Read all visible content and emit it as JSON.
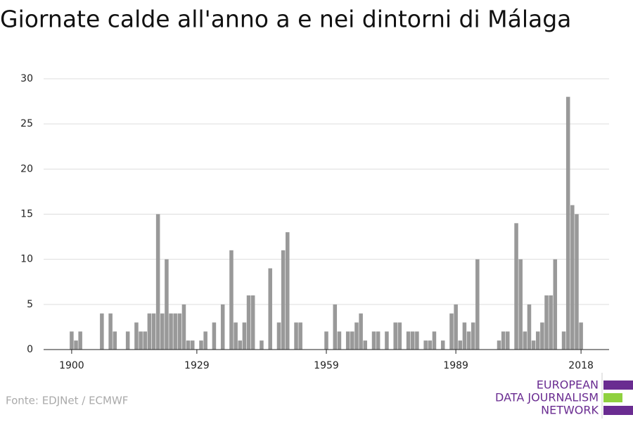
{
  "chart_data": {
    "type": "bar",
    "title": "Giornate calde all'anno a e nei dintorni di Málaga",
    "source": "Fonte: EDJNet / ECMWF",
    "logo": [
      "EUROPEAN",
      "DATA JOURNALISM",
      "NETWORK"
    ],
    "color": "#999999",
    "x": [
      1900,
      1901,
      1902,
      1903,
      1904,
      1905,
      1906,
      1907,
      1908,
      1909,
      1910,
      1911,
      1912,
      1913,
      1914,
      1915,
      1916,
      1917,
      1918,
      1919,
      1920,
      1921,
      1922,
      1923,
      1924,
      1925,
      1926,
      1927,
      1928,
      1929,
      1930,
      1931,
      1932,
      1933,
      1934,
      1935,
      1936,
      1937,
      1938,
      1939,
      1940,
      1941,
      1942,
      1943,
      1944,
      1945,
      1946,
      1947,
      1948,
      1949,
      1950,
      1951,
      1952,
      1953,
      1954,
      1955,
      1956,
      1957,
      1958,
      1959,
      1960,
      1961,
      1962,
      1963,
      1964,
      1965,
      1966,
      1967,
      1968,
      1969,
      1970,
      1971,
      1972,
      1973,
      1974,
      1975,
      1976,
      1977,
      1978,
      1979,
      1980,
      1981,
      1982,
      1983,
      1984,
      1985,
      1986,
      1987,
      1988,
      1989,
      1990,
      1991,
      1992,
      1993,
      1994,
      1995,
      1996,
      1997,
      1998,
      1999,
      2000,
      2001,
      2002,
      2003,
      2004,
      2005,
      2006,
      2007,
      2008,
      2009,
      2010,
      2011,
      2012,
      2013,
      2014,
      2015,
      2016,
      2017,
      2018
    ],
    "values": [
      2,
      1,
      2,
      0,
      0,
      0,
      0,
      4,
      0,
      4,
      2,
      0,
      0,
      2,
      0,
      3,
      2,
      2,
      4,
      4,
      15,
      4,
      10,
      4,
      4,
      4,
      5,
      1,
      1,
      0,
      1,
      2,
      0,
      3,
      0,
      5,
      0,
      11,
      3,
      1,
      3,
      6,
      6,
      0,
      1,
      0,
      9,
      0,
      3,
      11,
      13,
      0,
      3,
      3,
      0,
      0,
      0,
      0,
      0,
      2,
      0,
      5,
      2,
      0,
      2,
      2,
      3,
      4,
      1,
      0,
      2,
      2,
      0,
      2,
      0,
      3,
      3,
      0,
      2,
      2,
      2,
      0,
      1,
      1,
      2,
      0,
      1,
      0,
      4,
      5,
      1,
      3,
      2,
      3,
      10,
      0,
      0,
      0,
      0,
      1,
      2,
      2,
      0,
      14,
      10,
      2,
      5,
      1,
      2,
      3,
      6,
      6,
      10,
      0,
      2,
      28,
      16,
      15,
      3
    ],
    "xlim": [
      1893.5,
      2024.5
    ],
    "xticks": [
      1900,
      1929,
      1959,
      1989,
      2018
    ],
    "ylim": [
      0,
      30
    ],
    "yticks": [
      0,
      5,
      10,
      15,
      20,
      25,
      30
    ],
    "grid": true
  }
}
